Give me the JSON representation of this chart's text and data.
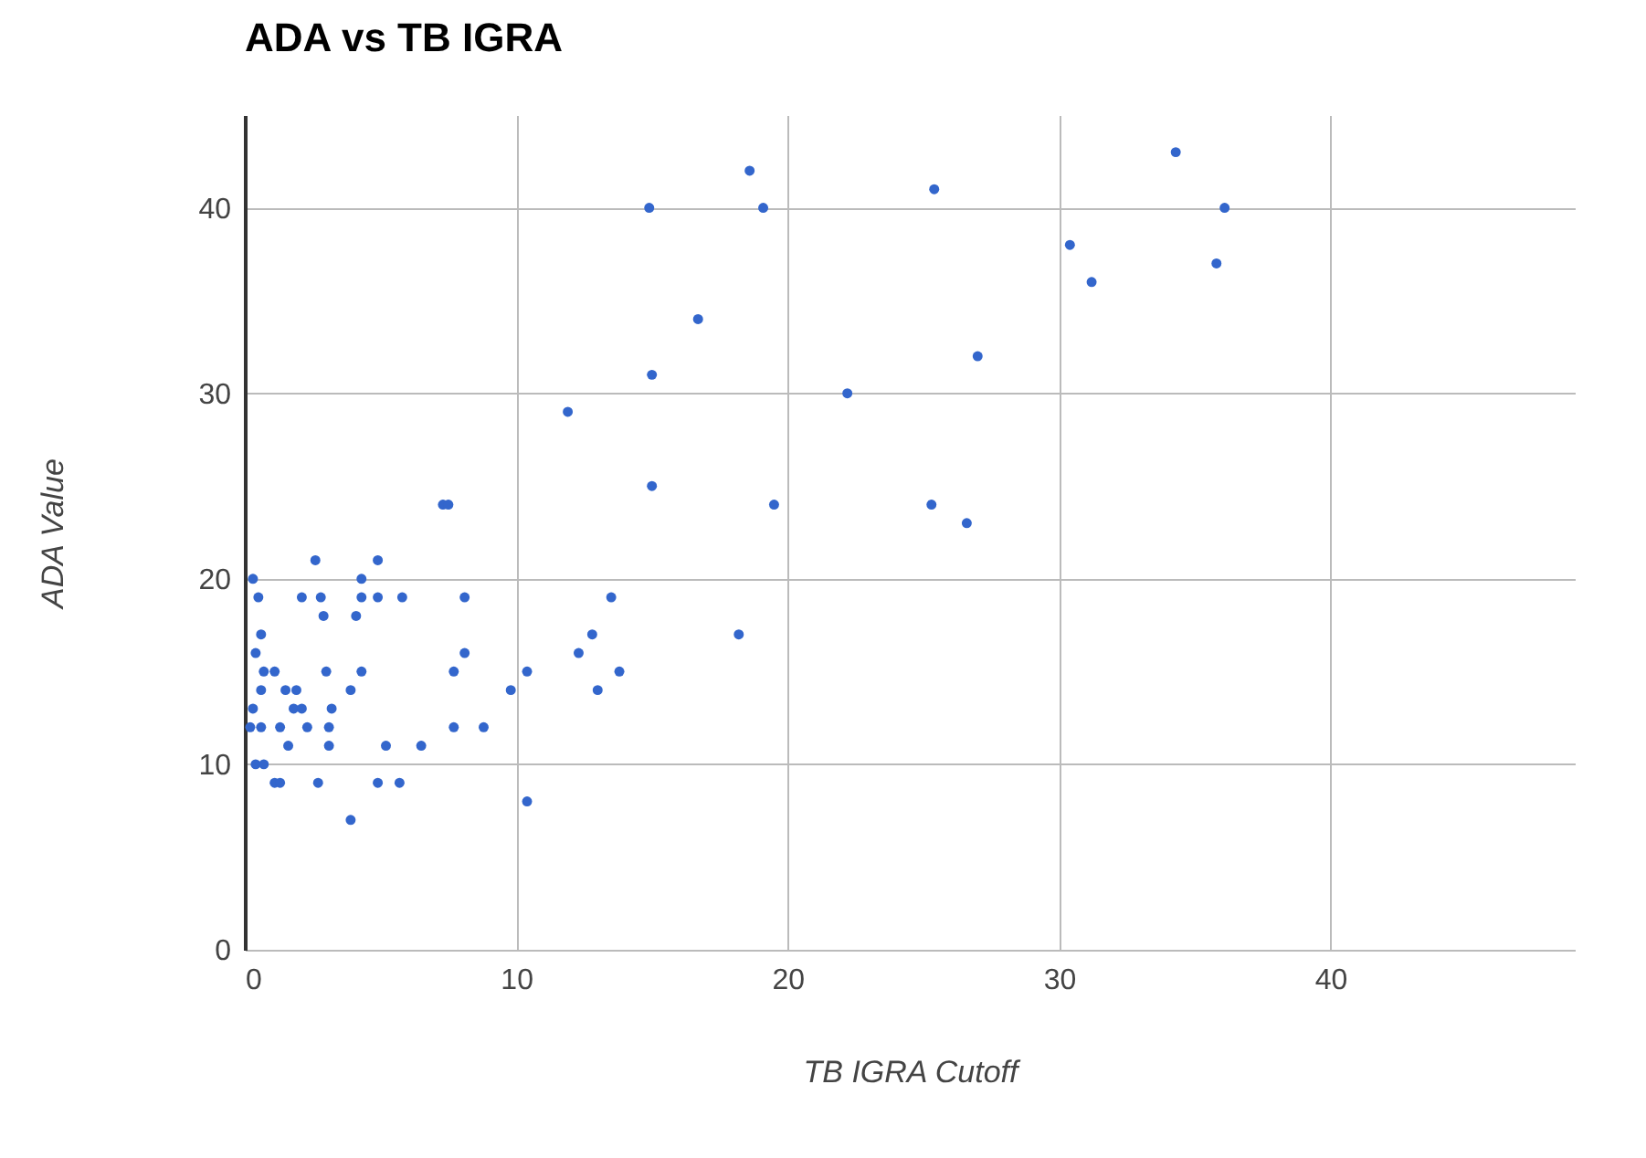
{
  "chart_data": {
    "type": "scatter",
    "title": "ADA vs TB IGRA",
    "xlabel": "TB IGRA Cutoff",
    "ylabel": "ADA Value",
    "xlim": [
      0,
      49
    ],
    "xticks": [
      0,
      10,
      20,
      30,
      40
    ],
    "ylim": [
      0,
      45
    ],
    "yticks": [
      0,
      10,
      20,
      30,
      40
    ],
    "grid": true,
    "marker": "circle",
    "series": [
      {
        "color": "#3366cc",
        "x": [
          2.6,
          4.9,
          0.3,
          4.3,
          0.5,
          2.1,
          2.8,
          4.3,
          4.9,
          5.8,
          8.1,
          2.9,
          4.1,
          0.6,
          0.4,
          8.1,
          0.7,
          1.1,
          3.0,
          4.3,
          7.7,
          10.4,
          0.6,
          1.5,
          1.9,
          3.9,
          9.8,
          0.3,
          1.8,
          2.1,
          3.2,
          0.2,
          0.6,
          1.3,
          2.3,
          3.1,
          7.7,
          8.8,
          1.6,
          3.1,
          5.2,
          6.5,
          0.4,
          0.7,
          1.1,
          1.3,
          2.7,
          4.9,
          5.7,
          10.4,
          3.9,
          7.3,
          7.5,
          18.6,
          14.9,
          19.1,
          25.4,
          16.7,
          15.0,
          27.0,
          22.2,
          11.9,
          15.0,
          19.5,
          25.3,
          26.6,
          13.5,
          12.8,
          18.2,
          12.3,
          13.8,
          13.0,
          34.3,
          36.1,
          30.4,
          35.8,
          31.2
        ],
        "values": [
          21,
          21,
          20,
          20,
          19,
          19,
          19,
          19,
          19,
          19,
          19,
          18,
          18,
          17,
          16,
          16,
          15,
          15,
          15,
          15,
          15,
          15,
          14,
          14,
          14,
          14,
          14,
          13,
          13,
          13,
          13,
          12,
          12,
          12,
          12,
          12,
          12,
          12,
          11,
          11,
          11,
          11,
          10,
          10,
          9,
          9,
          9,
          9,
          9,
          8,
          7,
          24,
          24,
          42,
          40,
          40,
          41,
          34,
          31,
          32,
          30,
          29,
          25,
          24,
          24,
          23,
          19,
          17,
          17,
          16,
          15,
          14,
          43,
          40,
          38,
          37,
          36
        ]
      }
    ]
  }
}
